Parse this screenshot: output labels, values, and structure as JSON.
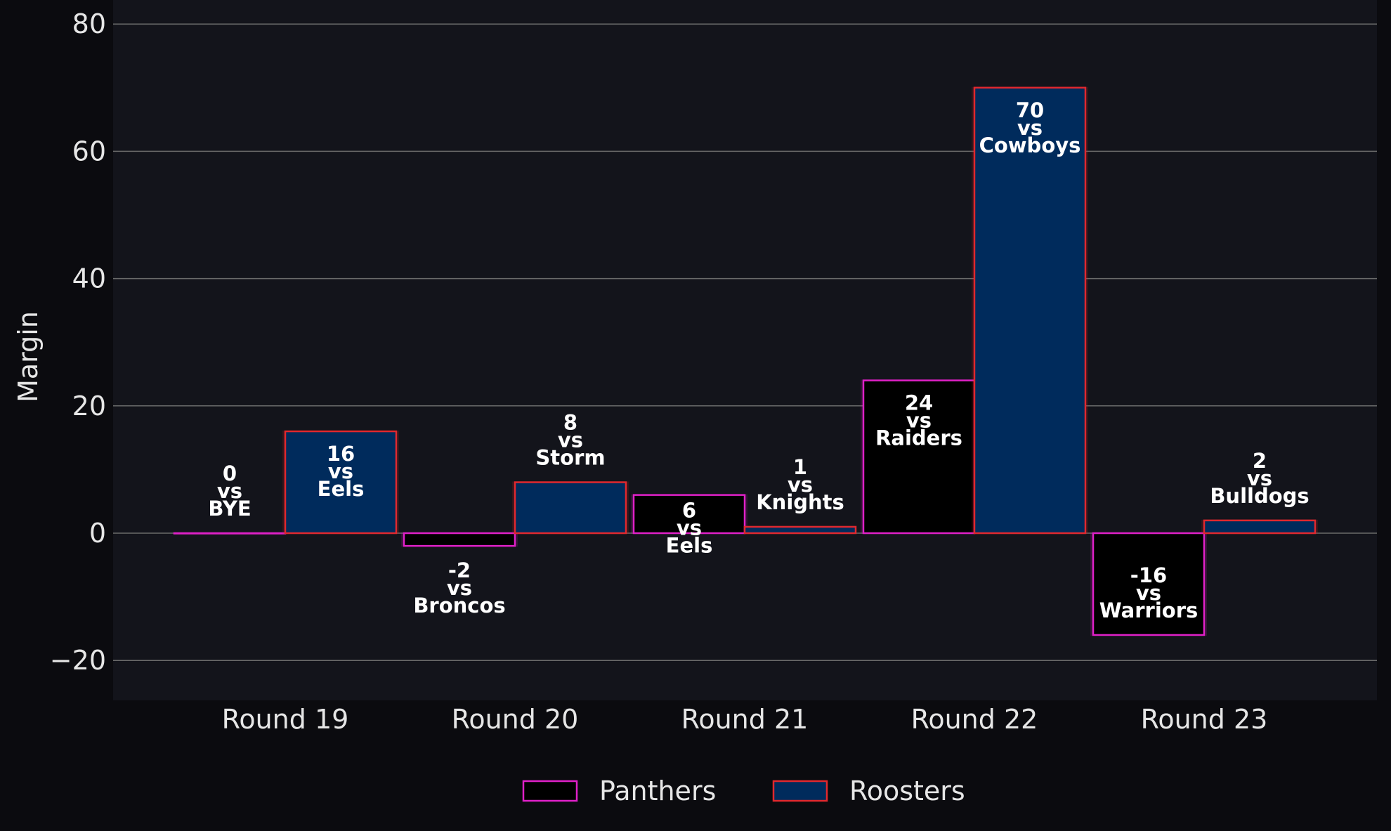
{
  "chart_data": {
    "type": "bar",
    "title": "",
    "xlabel": "",
    "ylabel": "Margin",
    "ylim": [
      -26.5,
      81.5
    ],
    "yticks": [
      -20,
      0,
      20,
      40,
      60,
      80
    ],
    "ytick_labels": [
      "−20",
      "0",
      "20",
      "40",
      "60",
      "80"
    ],
    "grid": true,
    "legend_position": "bottom-center",
    "categories": [
      "Round 19",
      "Round 20",
      "Round 21",
      "Round 22",
      "Round 23"
    ],
    "series": [
      {
        "name": "Panthers",
        "values": [
          0,
          -2,
          6,
          24,
          -16
        ],
        "opponents": [
          "BYE",
          "Broncos",
          "Eels",
          "Raiders",
          "Warriors"
        ],
        "fill": "#000000",
        "edge": "#e020c8"
      },
      {
        "name": "Roosters",
        "values": [
          16,
          8,
          1,
          70,
          2
        ],
        "opponents": [
          "Eels",
          "Storm",
          "Knights",
          "Cowboys",
          "Bulldogs"
        ],
        "fill": "#002b5c",
        "edge": "#e0282e"
      }
    ],
    "vs_text": "vs",
    "colors": {
      "background": "#0b0b0f",
      "plot_background": "#13141b",
      "grid": "#6b6b6b",
      "text": "#e6e6e6",
      "label": "#ffffff"
    }
  }
}
